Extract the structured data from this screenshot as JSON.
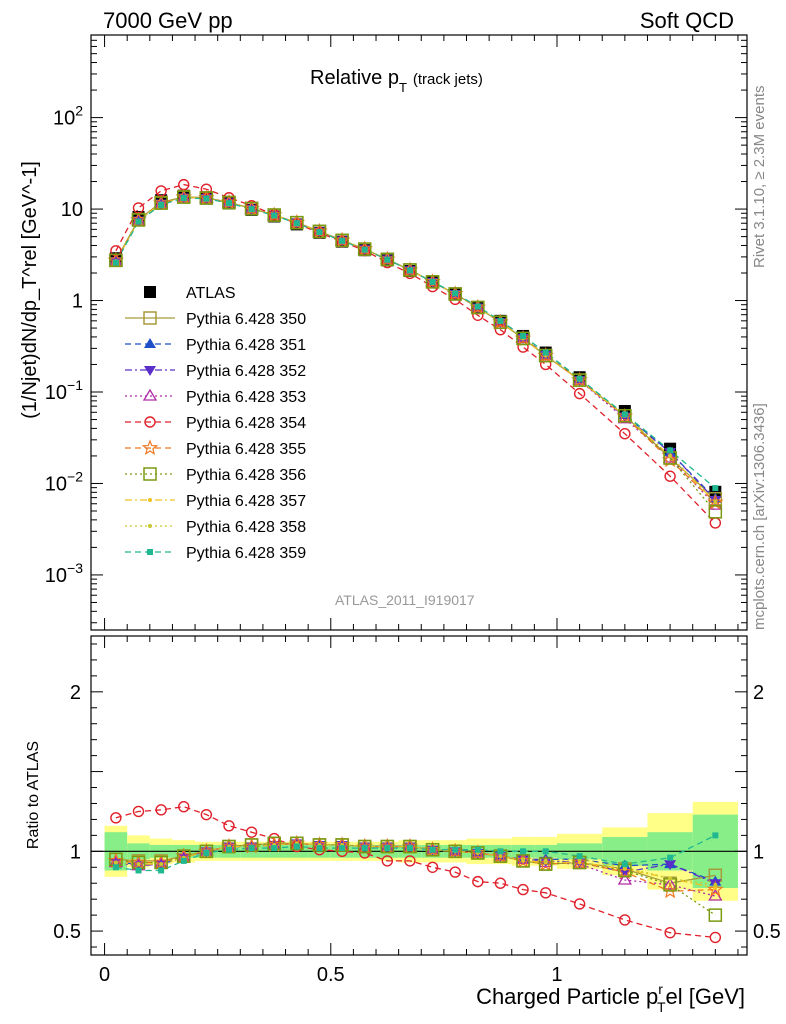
{
  "header": {
    "left": "7000 GeV pp",
    "right": "Soft QCD"
  },
  "side_labels": {
    "rivet": "Rivet 3.1.10, ≥ 2.3M events",
    "mcplots": "mcplots.cern.ch [arXiv:1306.3436]"
  },
  "colors": {
    "ATLAS": "#000000",
    "350": "#a89a3a",
    "351": "#1f4fc8",
    "352": "#5a2ec8",
    "353": "#b02aa8",
    "354": "#e0202a",
    "355": "#f07820",
    "356": "#7a9a10",
    "357": "#f0c020",
    "358": "#c8c830",
    "359": "#20b890",
    "band_inner": "#88ee88",
    "band_outer": "#ffff88"
  },
  "chart_data": [
    {
      "type": "line",
      "title": "Relative p_T (track jets)",
      "title_main": "Relative p",
      "title_sub": "T",
      "title_suffix": "(track jets)",
      "watermark": "ATLAS_2011_I919017",
      "ylabel": "(1/Njet)dN/dp_T^rel [GeV^-1]",
      "yscale": "log",
      "ylim": [
        0.00025,
        800
      ],
      "xlim": [
        -0.03,
        1.42
      ],
      "ytick_labels": [
        "10^-3",
        "10^-2",
        "10^-1",
        "1",
        "10",
        "10^2"
      ],
      "legend_position": "left",
      "x": [
        0.025,
        0.075,
        0.125,
        0.175,
        0.225,
        0.275,
        0.325,
        0.375,
        0.425,
        0.475,
        0.525,
        0.575,
        0.625,
        0.675,
        0.725,
        0.775,
        0.825,
        0.875,
        0.925,
        0.975,
        1.05,
        1.15,
        1.25,
        1.35
      ],
      "series": [
        {
          "name": "ATLAS",
          "marker": "square-filled",
          "dash": "none",
          "values": [
            2.9,
            8.2,
            12.5,
            14.0,
            13.0,
            11.5,
            9.8,
            8.3,
            6.8,
            5.5,
            4.4,
            3.55,
            2.75,
            2.1,
            1.58,
            1.18,
            0.85,
            0.6,
            0.41,
            0.27,
            0.145,
            0.062,
            0.024,
            0.0081
          ]
        },
        {
          "name": "Pythia 6.428 350",
          "marker": "square-open",
          "dash": "solid",
          "values": [
            2.75,
            7.7,
            11.8,
            13.6,
            13.3,
            11.8,
            10.2,
            8.6,
            7.1,
            5.7,
            4.55,
            3.65,
            2.82,
            2.16,
            1.6,
            1.18,
            0.84,
            0.58,
            0.385,
            0.25,
            0.135,
            0.055,
            0.019,
            0.0068
          ]
        },
        {
          "name": "Pythia 6.428 351",
          "marker": "triangle-up-filled",
          "dash": "dashed",
          "values": [
            2.7,
            7.5,
            11.5,
            13.4,
            13.2,
            11.8,
            10.1,
            8.6,
            7.1,
            5.7,
            4.55,
            3.65,
            2.82,
            2.15,
            1.6,
            1.18,
            0.84,
            0.58,
            0.39,
            0.255,
            0.138,
            0.056,
            0.022,
            0.0068
          ]
        },
        {
          "name": "Pythia 6.428 352",
          "marker": "triangle-down-filled",
          "dash": "dashdot",
          "values": [
            2.7,
            7.5,
            11.5,
            13.4,
            13.2,
            11.8,
            10.1,
            8.6,
            7.1,
            5.7,
            4.55,
            3.65,
            2.82,
            2.15,
            1.6,
            1.18,
            0.84,
            0.58,
            0.39,
            0.255,
            0.135,
            0.054,
            0.022,
            0.0066
          ]
        },
        {
          "name": "Pythia 6.428 353",
          "marker": "triangle-up-open",
          "dash": "dotted",
          "values": [
            2.7,
            7.5,
            11.5,
            13.4,
            13.2,
            11.8,
            10.1,
            8.6,
            7.1,
            5.7,
            4.55,
            3.65,
            2.82,
            2.15,
            1.6,
            1.18,
            0.84,
            0.58,
            0.39,
            0.252,
            0.134,
            0.051,
            0.019,
            0.0058
          ]
        },
        {
          "name": "Pythia 6.428 354",
          "marker": "circle-open",
          "dash": "dashed",
          "values": [
            3.5,
            10.3,
            15.8,
            18.5,
            16.5,
            13.3,
            10.9,
            8.7,
            6.9,
            5.5,
            4.4,
            3.52,
            2.6,
            1.98,
            1.42,
            1.03,
            0.69,
            0.48,
            0.31,
            0.2,
            0.096,
            0.035,
            0.012,
            0.0037
          ]
        },
        {
          "name": "Pythia 6.428 355",
          "marker": "star-open",
          "dash": "dashed",
          "values": [
            2.75,
            7.6,
            11.6,
            13.5,
            13.2,
            11.8,
            10.1,
            8.6,
            7.1,
            5.7,
            4.55,
            3.65,
            2.82,
            2.15,
            1.6,
            1.18,
            0.84,
            0.58,
            0.385,
            0.25,
            0.135,
            0.054,
            0.018,
            0.0062
          ]
        },
        {
          "name": "Pythia 6.428 356",
          "marker": "square-open",
          "dash": "dotted",
          "values": [
            2.75,
            7.6,
            11.6,
            13.5,
            13.2,
            11.8,
            10.1,
            8.6,
            7.1,
            5.7,
            4.55,
            3.65,
            2.82,
            2.16,
            1.6,
            1.18,
            0.84,
            0.58,
            0.385,
            0.25,
            0.135,
            0.055,
            0.019,
            0.0049
          ]
        },
        {
          "name": "Pythia 6.428 357",
          "marker": "dot-small",
          "dash": "dashdot",
          "values": [
            2.7,
            7.5,
            11.5,
            13.4,
            13.2,
            11.8,
            10.1,
            8.6,
            7.1,
            5.7,
            4.55,
            3.65,
            2.82,
            2.15,
            1.6,
            1.18,
            0.84,
            0.58,
            0.385,
            0.25,
            0.135,
            0.055,
            0.02,
            0.0062
          ]
        },
        {
          "name": "Pythia 6.428 358",
          "marker": "dot-small",
          "dash": "dotted",
          "values": [
            2.7,
            7.5,
            11.5,
            13.4,
            13.2,
            11.8,
            10.1,
            8.6,
            7.1,
            5.7,
            4.55,
            3.65,
            2.82,
            2.15,
            1.6,
            1.18,
            0.84,
            0.58,
            0.39,
            0.255,
            0.138,
            0.056,
            0.02,
            0.0064
          ]
        },
        {
          "name": "Pythia 6.428 359",
          "marker": "square-filled-small",
          "dash": "dashed",
          "values": [
            2.6,
            7.3,
            11.1,
            13.2,
            13.0,
            11.6,
            10.0,
            8.5,
            7.0,
            5.6,
            4.5,
            3.6,
            2.8,
            2.14,
            1.6,
            1.2,
            0.86,
            0.6,
            0.41,
            0.27,
            0.14,
            0.057,
            0.023,
            0.0089
          ]
        }
      ]
    },
    {
      "type": "line",
      "ylabel": "Ratio to ATLAS",
      "xlabel": "Charged Particle p_T^rel [GeV]",
      "xlabel_main": "Charged Particle p",
      "xlabel_sup": "r",
      "xlabel_sub": "T",
      "xlabel_suffix": "el [GeV]",
      "ylim": [
        0.35,
        2.35
      ],
      "xlim": [
        -0.03,
        1.42
      ],
      "ytick_labels": [
        "0.5",
        "1",
        "2"
      ],
      "xtick_labels": [
        "0",
        "0.5",
        "1"
      ],
      "x": [
        0.025,
        0.075,
        0.125,
        0.175,
        0.225,
        0.275,
        0.325,
        0.375,
        0.425,
        0.475,
        0.525,
        0.575,
        0.625,
        0.675,
        0.725,
        0.775,
        0.825,
        0.875,
        0.925,
        0.975,
        1.05,
        1.15,
        1.25,
        1.35
      ],
      "bands": {
        "bin_edges": [
          0.0,
          0.05,
          0.1,
          0.15,
          0.2,
          0.25,
          0.3,
          0.35,
          0.4,
          0.45,
          0.5,
          0.55,
          0.6,
          0.65,
          0.7,
          0.75,
          0.8,
          0.85,
          0.9,
          0.95,
          1.0,
          1.1,
          1.2,
          1.3,
          1.4
        ],
        "inner_half": [
          0.12,
          0.05,
          0.04,
          0.04,
          0.04,
          0.04,
          0.04,
          0.04,
          0.04,
          0.04,
          0.04,
          0.04,
          0.04,
          0.04,
          0.04,
          0.04,
          0.04,
          0.04,
          0.04,
          0.04,
          0.05,
          0.09,
          0.12,
          0.23
        ],
        "outer_half": [
          0.16,
          0.1,
          0.08,
          0.07,
          0.06,
          0.06,
          0.06,
          0.06,
          0.06,
          0.06,
          0.06,
          0.06,
          0.06,
          0.07,
          0.07,
          0.07,
          0.08,
          0.08,
          0.09,
          0.09,
          0.11,
          0.15,
          0.24,
          0.31
        ]
      },
      "series": [
        {
          "name": "Pythia 6.428 350",
          "values": [
            0.95,
            0.94,
            0.94,
            0.97,
            1.0,
            1.03,
            1.04,
            1.05,
            1.05,
            1.04,
            1.04,
            1.03,
            1.03,
            1.03,
            1.01,
            1.0,
            0.99,
            0.97,
            0.94,
            0.92,
            0.93,
            0.89,
            0.8,
            0.85
          ]
        },
        {
          "name": "Pythia 6.428 351",
          "values": [
            0.93,
            0.92,
            0.92,
            0.96,
            1.0,
            1.03,
            1.03,
            1.04,
            1.05,
            1.04,
            1.04,
            1.03,
            1.03,
            1.03,
            1.01,
            1.0,
            0.99,
            0.97,
            0.95,
            0.95,
            0.95,
            0.91,
            0.92,
            0.81
          ]
        },
        {
          "name": "Pythia 6.428 352",
          "values": [
            0.93,
            0.91,
            0.92,
            0.96,
            1.0,
            1.03,
            1.03,
            1.04,
            1.05,
            1.04,
            1.04,
            1.03,
            1.03,
            1.03,
            1.01,
            1.0,
            0.99,
            0.97,
            0.95,
            0.94,
            0.93,
            0.87,
            0.92,
            0.8
          ]
        },
        {
          "name": "Pythia 6.428 353",
          "values": [
            0.93,
            0.91,
            0.92,
            0.96,
            1.0,
            1.03,
            1.03,
            1.04,
            1.05,
            1.04,
            1.04,
            1.03,
            1.03,
            1.03,
            1.01,
            1.0,
            0.99,
            0.97,
            0.95,
            0.93,
            0.92,
            0.82,
            0.79,
            0.72
          ]
        },
        {
          "name": "Pythia 6.428 354",
          "values": [
            1.21,
            1.25,
            1.26,
            1.28,
            1.23,
            1.16,
            1.12,
            1.08,
            1.03,
            1.01,
            1.0,
            0.99,
            0.94,
            0.94,
            0.9,
            0.87,
            0.81,
            0.8,
            0.76,
            0.74,
            0.67,
            0.57,
            0.49,
            0.46
          ]
        },
        {
          "name": "Pythia 6.428 355",
          "values": [
            0.94,
            0.93,
            0.93,
            0.97,
            1.0,
            1.03,
            1.03,
            1.04,
            1.05,
            1.04,
            1.04,
            1.03,
            1.03,
            1.03,
            1.01,
            1.0,
            0.99,
            0.97,
            0.94,
            0.92,
            0.93,
            0.87,
            0.75,
            0.76
          ]
        },
        {
          "name": "Pythia 6.428 356",
          "values": [
            0.95,
            0.93,
            0.93,
            0.97,
            1.0,
            1.03,
            1.04,
            1.05,
            1.05,
            1.04,
            1.04,
            1.03,
            1.03,
            1.03,
            1.01,
            1.0,
            0.99,
            0.97,
            0.94,
            0.92,
            0.93,
            0.88,
            0.79,
            0.6
          ]
        },
        {
          "name": "Pythia 6.428 357",
          "values": [
            0.93,
            0.92,
            0.92,
            0.96,
            1.0,
            1.03,
            1.03,
            1.04,
            1.05,
            1.04,
            1.04,
            1.03,
            1.03,
            1.03,
            1.01,
            1.0,
            0.99,
            0.97,
            0.94,
            0.93,
            0.93,
            0.89,
            0.83,
            0.77
          ]
        },
        {
          "name": "Pythia 6.428 358",
          "values": [
            0.93,
            0.92,
            0.92,
            0.96,
            1.0,
            1.03,
            1.03,
            1.04,
            1.05,
            1.04,
            1.04,
            1.03,
            1.03,
            1.03,
            1.01,
            1.0,
            0.99,
            0.97,
            0.95,
            0.94,
            0.95,
            0.9,
            0.83,
            0.79
          ]
        },
        {
          "name": "Pythia 6.428 359",
          "values": [
            0.9,
            0.88,
            0.88,
            0.94,
            0.99,
            1.01,
            1.02,
            1.02,
            1.03,
            1.02,
            1.02,
            1.02,
            1.02,
            1.02,
            1.01,
            1.01,
            1.01,
            1.0,
            1.0,
            1.0,
            0.97,
            0.92,
            0.96,
            1.1
          ]
        }
      ]
    }
  ]
}
